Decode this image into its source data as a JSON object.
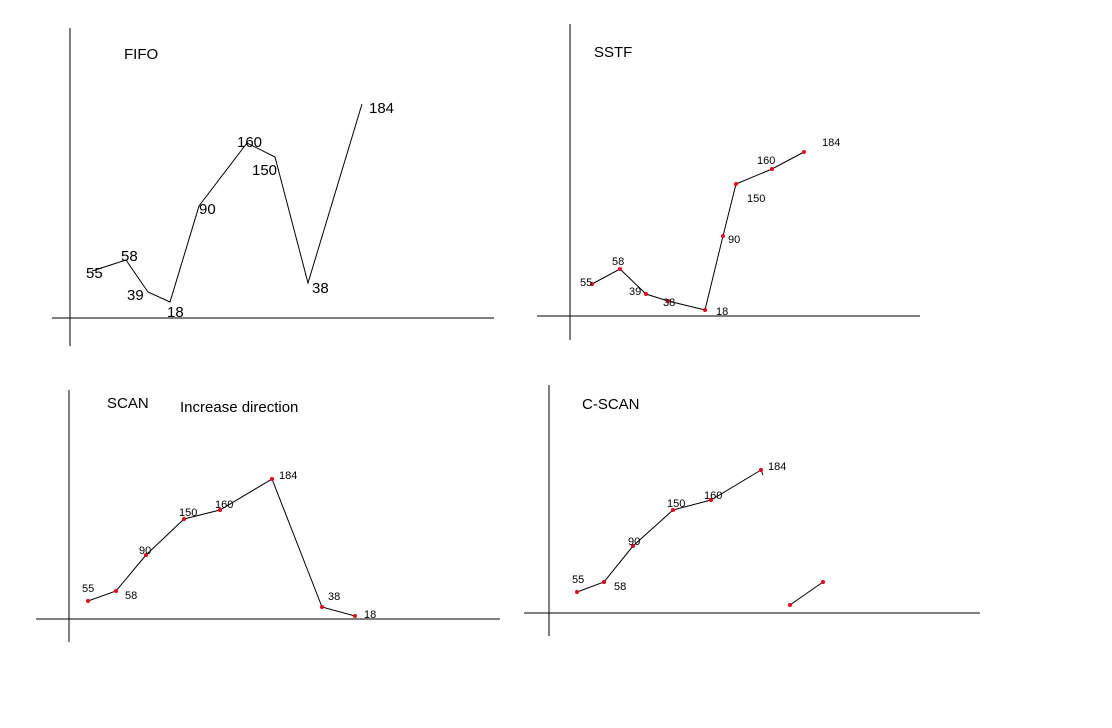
{
  "panels": [
    {
      "id": "fifo",
      "title": "FIFO",
      "sequence": [
        "55",
        "58",
        "39",
        "18",
        "90",
        "160",
        "150",
        "38",
        "184"
      ]
    },
    {
      "id": "sstf",
      "title": "SSTF",
      "sequence": [
        "55",
        "58",
        "39",
        "38",
        "18",
        "90",
        "150",
        "160",
        "184"
      ]
    },
    {
      "id": "scan",
      "title": "SCAN",
      "subtitle": "Increase direction",
      "sequence": [
        "55",
        "58",
        "90",
        "150",
        "160",
        "184",
        "38",
        "18"
      ]
    },
    {
      "id": "cscan",
      "title": "C-SCAN",
      "sequence": [
        "55",
        "58",
        "90",
        "150",
        "160",
        "184"
      ]
    }
  ],
  "colors": {
    "line": "#000000",
    "point": "#e8001c"
  }
}
